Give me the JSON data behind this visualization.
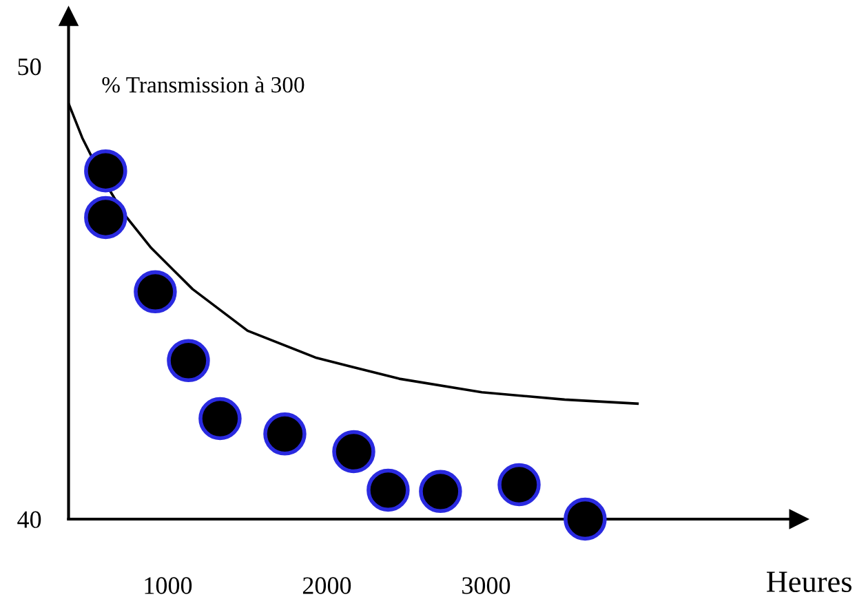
{
  "chart_data": {
    "type": "scatter",
    "ylabel": "% Transmission à 300",
    "xlabel": "Heures",
    "xlim": [
      377,
      4965
    ],
    "ylim": [
      40,
      51.1
    ],
    "xticks": [
      1000,
      2000,
      3000
    ],
    "yticks": [
      40,
      50
    ],
    "grid": false,
    "legend": false,
    "marker": "circle",
    "series": [
      {
        "color": "#000000",
        "x": [
          610,
          610,
          922,
          1130,
          1329,
          1736,
          2169,
          2385,
          2714,
          3208,
          3623
        ],
        "values": [
          47.69,
          46.66,
          45.02,
          43.5,
          42.22,
          41.88,
          41.49,
          40.64,
          40.61,
          40.76,
          40.0
        ]
      },
      {
        "type": "line",
        "color": "#000000",
        "marker": "none",
        "x": [
          377,
          463,
          593,
          723,
          896,
          1156,
          1502,
          1935,
          2455,
          2974,
          3494,
          3952
        ],
        "values": [
          49.18,
          48.42,
          47.51,
          46.75,
          45.99,
          45.08,
          44.16,
          43.56,
          43.1,
          42.8,
          42.64,
          42.55
        ]
      }
    ]
  }
}
